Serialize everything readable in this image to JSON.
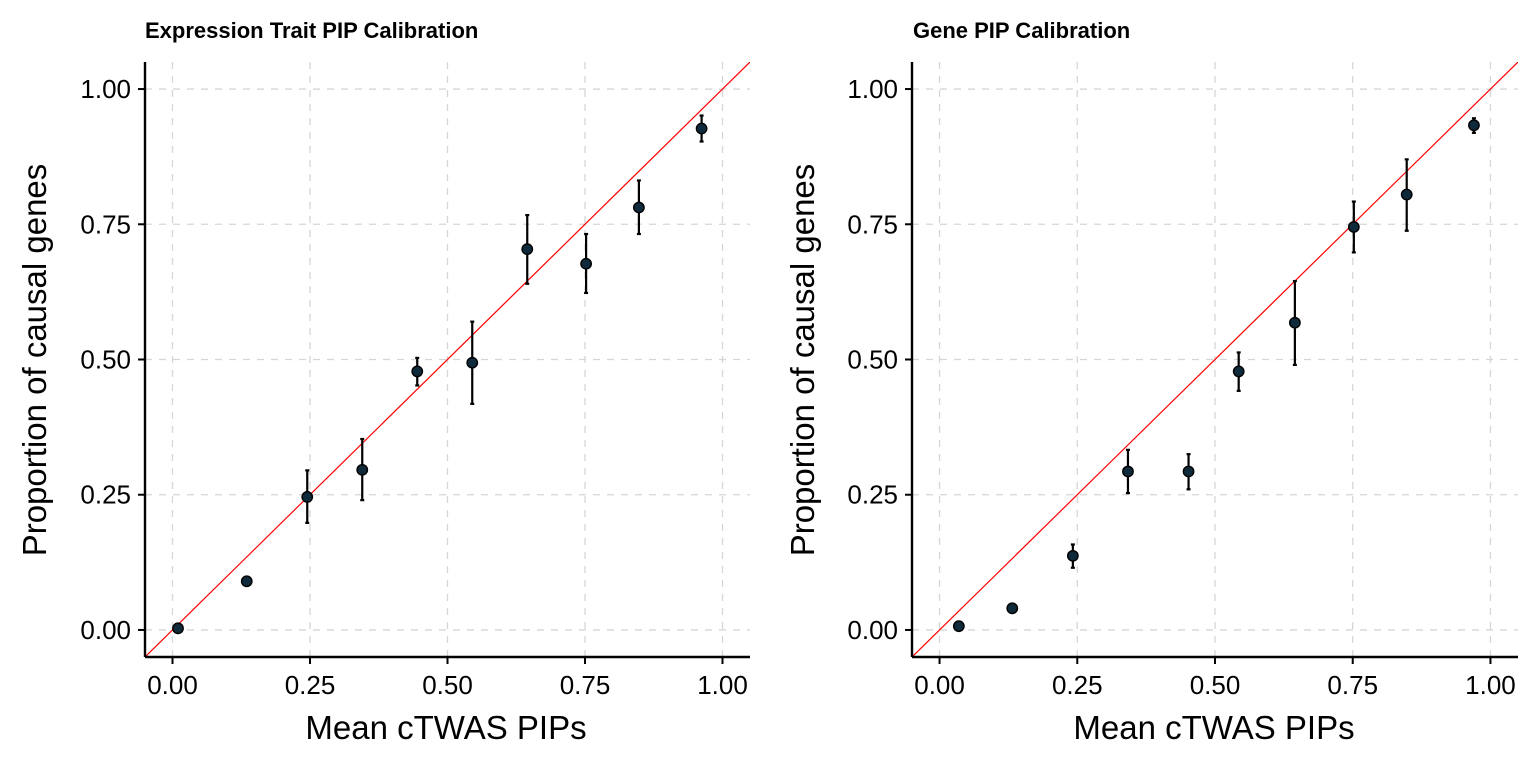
{
  "chart_data": [
    {
      "type": "scatter",
      "title": "Expression Trait PIP Calibration",
      "xlabel": "Mean cTWAS PIPs",
      "ylabel": "Proportion of causal genes",
      "xlim": [
        -0.05,
        1.05
      ],
      "ylim": [
        -0.05,
        1.05
      ],
      "xticks": [
        "0.00",
        "0.25",
        "0.50",
        "0.75",
        "1.00"
      ],
      "yticks": [
        "0.00",
        "0.25",
        "0.50",
        "0.75",
        "1.00"
      ],
      "grid": true,
      "reference_line": "y = x",
      "reference_color": "#ff0000",
      "point_color": "#0f2a3a",
      "points": [
        {
          "x": 0.01,
          "y": 0.003,
          "lo": 0.003,
          "hi": 0.003
        },
        {
          "x": 0.135,
          "y": 0.09,
          "lo": 0.09,
          "hi": 0.09
        },
        {
          "x": 0.245,
          "y": 0.246,
          "lo": 0.198,
          "hi": 0.295
        },
        {
          "x": 0.345,
          "y": 0.296,
          "lo": 0.24,
          "hi": 0.353
        },
        {
          "x": 0.445,
          "y": 0.478,
          "lo": 0.452,
          "hi": 0.503
        },
        {
          "x": 0.545,
          "y": 0.494,
          "lo": 0.418,
          "hi": 0.57
        },
        {
          "x": 0.645,
          "y": 0.704,
          "lo": 0.64,
          "hi": 0.767
        },
        {
          "x": 0.752,
          "y": 0.677,
          "lo": 0.623,
          "hi": 0.732
        },
        {
          "x": 0.848,
          "y": 0.781,
          "lo": 0.732,
          "hi": 0.831
        },
        {
          "x": 0.962,
          "y": 0.927,
          "lo": 0.903,
          "hi": 0.951
        }
      ]
    },
    {
      "type": "scatter",
      "title": "Gene PIP Calibration",
      "xlabel": "Mean cTWAS PIPs",
      "ylabel": "Proportion of causal genes",
      "xlim": [
        -0.05,
        1.05
      ],
      "ylim": [
        -0.05,
        1.05
      ],
      "xticks": [
        "0.00",
        "0.25",
        "0.50",
        "0.75",
        "1.00"
      ],
      "yticks": [
        "0.00",
        "0.25",
        "0.50",
        "0.75",
        "1.00"
      ],
      "grid": true,
      "reference_line": "y = x",
      "reference_color": "#ff0000",
      "point_color": "#0f2a3a",
      "points": [
        {
          "x": 0.035,
          "y": 0.007,
          "lo": 0.007,
          "hi": 0.007
        },
        {
          "x": 0.132,
          "y": 0.04,
          "lo": 0.04,
          "hi": 0.04
        },
        {
          "x": 0.242,
          "y": 0.137,
          "lo": 0.115,
          "hi": 0.158
        },
        {
          "x": 0.342,
          "y": 0.293,
          "lo": 0.253,
          "hi": 0.333
        },
        {
          "x": 0.452,
          "y": 0.293,
          "lo": 0.26,
          "hi": 0.325
        },
        {
          "x": 0.543,
          "y": 0.478,
          "lo": 0.442,
          "hi": 0.513
        },
        {
          "x": 0.645,
          "y": 0.568,
          "lo": 0.49,
          "hi": 0.645
        },
        {
          "x": 0.752,
          "y": 0.745,
          "lo": 0.698,
          "hi": 0.792
        },
        {
          "x": 0.848,
          "y": 0.805,
          "lo": 0.738,
          "hi": 0.87
        },
        {
          "x": 0.97,
          "y": 0.933,
          "lo": 0.919,
          "hi": 0.946
        }
      ]
    }
  ]
}
